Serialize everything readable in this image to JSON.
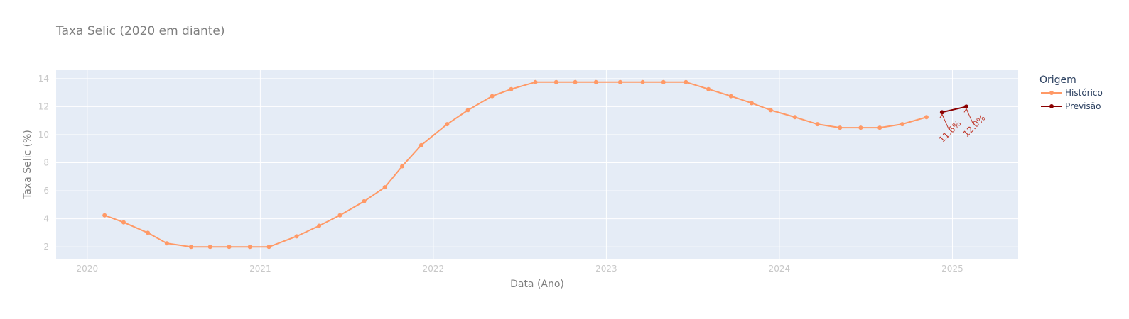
{
  "chart_data": {
    "type": "line",
    "title": "Taxa Selic (2020 em diante)",
    "xlabel": "Data (Ano)",
    "ylabel": "Taxa Selic (%)",
    "xlim": [
      2019.82,
      2025.38
    ],
    "ylim": [
      1.1,
      14.6
    ],
    "x_ticks": [
      2020,
      2021,
      2022,
      2023,
      2024,
      2025
    ],
    "x_tick_labels": [
      "2020",
      "2021",
      "2022",
      "2023",
      "2024",
      "2025"
    ],
    "y_ticks": [
      2,
      4,
      6,
      8,
      10,
      12,
      14
    ],
    "y_tick_labels": [
      "2",
      "4",
      "6",
      "8",
      "10",
      "12",
      "14"
    ],
    "grid": true,
    "legend": {
      "title": "Origem",
      "position": "right"
    },
    "series": [
      {
        "name": "Histórico",
        "color": "#FF9966",
        "x": [
          2020.1,
          2020.21,
          2020.35,
          2020.46,
          2020.6,
          2020.71,
          2020.82,
          2020.94,
          2021.05,
          2021.21,
          2021.34,
          2021.46,
          2021.6,
          2021.72,
          2021.82,
          2021.93,
          2022.08,
          2022.2,
          2022.34,
          2022.45,
          2022.59,
          2022.71,
          2022.82,
          2022.94,
          2023.08,
          2023.21,
          2023.33,
          2023.46,
          2023.59,
          2023.72,
          2023.84,
          2023.95,
          2024.09,
          2024.22,
          2024.35,
          2024.47,
          2024.58,
          2024.71,
          2024.85
        ],
        "y": [
          4.25,
          3.75,
          3.0,
          2.25,
          2.0,
          2.0,
          2.0,
          2.0,
          2.0,
          2.75,
          3.5,
          4.25,
          5.25,
          6.25,
          7.75,
          9.25,
          10.75,
          11.75,
          12.75,
          13.25,
          13.75,
          13.75,
          13.75,
          13.75,
          13.75,
          13.75,
          13.75,
          13.75,
          13.25,
          12.75,
          12.25,
          11.75,
          11.25,
          10.75,
          10.5,
          10.5,
          10.5,
          10.75,
          11.25
        ]
      },
      {
        "name": "Previsão",
        "color": "#8B0000",
        "x": [
          2024.94,
          2025.08
        ],
        "y": [
          11.6,
          12.0
        ]
      }
    ],
    "annotations": [
      {
        "text": "11.6%",
        "x": 2024.94,
        "y": 11.6,
        "color": "#c0392b"
      },
      {
        "text": "12.0%",
        "x": 2025.08,
        "y": 12.0,
        "color": "#c0392b"
      }
    ]
  }
}
